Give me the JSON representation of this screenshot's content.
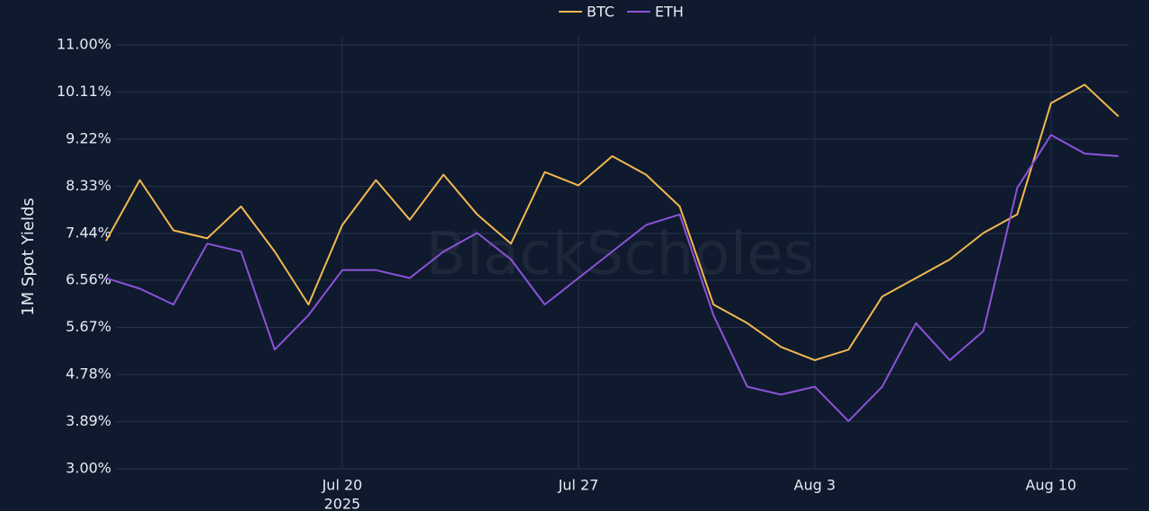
{
  "chart_data": {
    "type": "line",
    "y_label": "1M Spot Yields",
    "watermark": "BlackScholes",
    "legend": "top",
    "grid": true,
    "x": [
      "2025-07-13",
      "2025-07-14",
      "2025-07-15",
      "2025-07-16",
      "2025-07-17",
      "2025-07-18",
      "2025-07-19",
      "2025-07-20",
      "2025-07-21",
      "2025-07-22",
      "2025-07-23",
      "2025-07-24",
      "2025-07-25",
      "2025-07-26",
      "2025-07-27",
      "2025-07-28",
      "2025-07-29",
      "2025-07-30",
      "2025-07-31",
      "2025-08-01",
      "2025-08-02",
      "2025-08-03",
      "2025-08-04",
      "2025-08-05",
      "2025-08-06",
      "2025-08-07",
      "2025-08-08",
      "2025-08-09",
      "2025-08-10",
      "2025-08-11",
      "2025-08-12"
    ],
    "series": [
      {
        "name": "BTC",
        "color": "#f2b84f",
        "values": [
          7.3,
          8.45,
          7.5,
          7.35,
          7.95,
          7.1,
          6.1,
          7.6,
          8.45,
          7.7,
          8.55,
          7.8,
          7.25,
          8.6,
          8.35,
          8.9,
          8.55,
          7.95,
          6.1,
          5.75,
          5.3,
          5.05,
          5.25,
          6.25,
          6.6,
          6.95,
          7.45,
          7.8,
          9.9,
          10.25,
          9.65
        ]
      },
      {
        "name": "ETH",
        "color": "#8c52d9",
        "values": [
          6.6,
          6.4,
          6.1,
          7.25,
          7.1,
          5.25,
          5.9,
          6.75,
          6.75,
          6.6,
          7.1,
          7.45,
          6.95,
          6.1,
          6.6,
          7.1,
          7.6,
          7.8,
          5.9,
          4.55,
          4.4,
          4.55,
          3.9,
          4.55,
          5.75,
          5.05,
          5.6,
          8.3,
          9.3,
          8.95,
          8.9
        ]
      }
    ],
    "xlim": [
      "2025-07-13",
      "2025-08-12"
    ],
    "xticks": [
      {
        "value": "2025-07-20",
        "label": "Jul 20"
      },
      {
        "value": "2025-07-27",
        "label": "Jul 27"
      },
      {
        "value": "2025-08-03",
        "label": "Aug 3"
      },
      {
        "value": "2025-08-10",
        "label": "Aug 10"
      }
    ],
    "x_year_label": "2025",
    "ylim": [
      3,
      11
    ],
    "yticks": [
      {
        "value": 3,
        "label": "3.00%"
      },
      {
        "value": 3.89,
        "label": "3.89%"
      },
      {
        "value": 4.78,
        "label": "4.78%"
      },
      {
        "value": 5.67,
        "label": "5.67%"
      },
      {
        "value": 6.56,
        "label": "6.56%"
      },
      {
        "value": 7.44,
        "label": "7.44%"
      },
      {
        "value": 8.33,
        "label": "8.33%"
      },
      {
        "value": 9.22,
        "label": "9.22%"
      },
      {
        "value": 10.11,
        "label": "10.11%"
      },
      {
        "value": 11,
        "label": "11.00%"
      }
    ]
  }
}
